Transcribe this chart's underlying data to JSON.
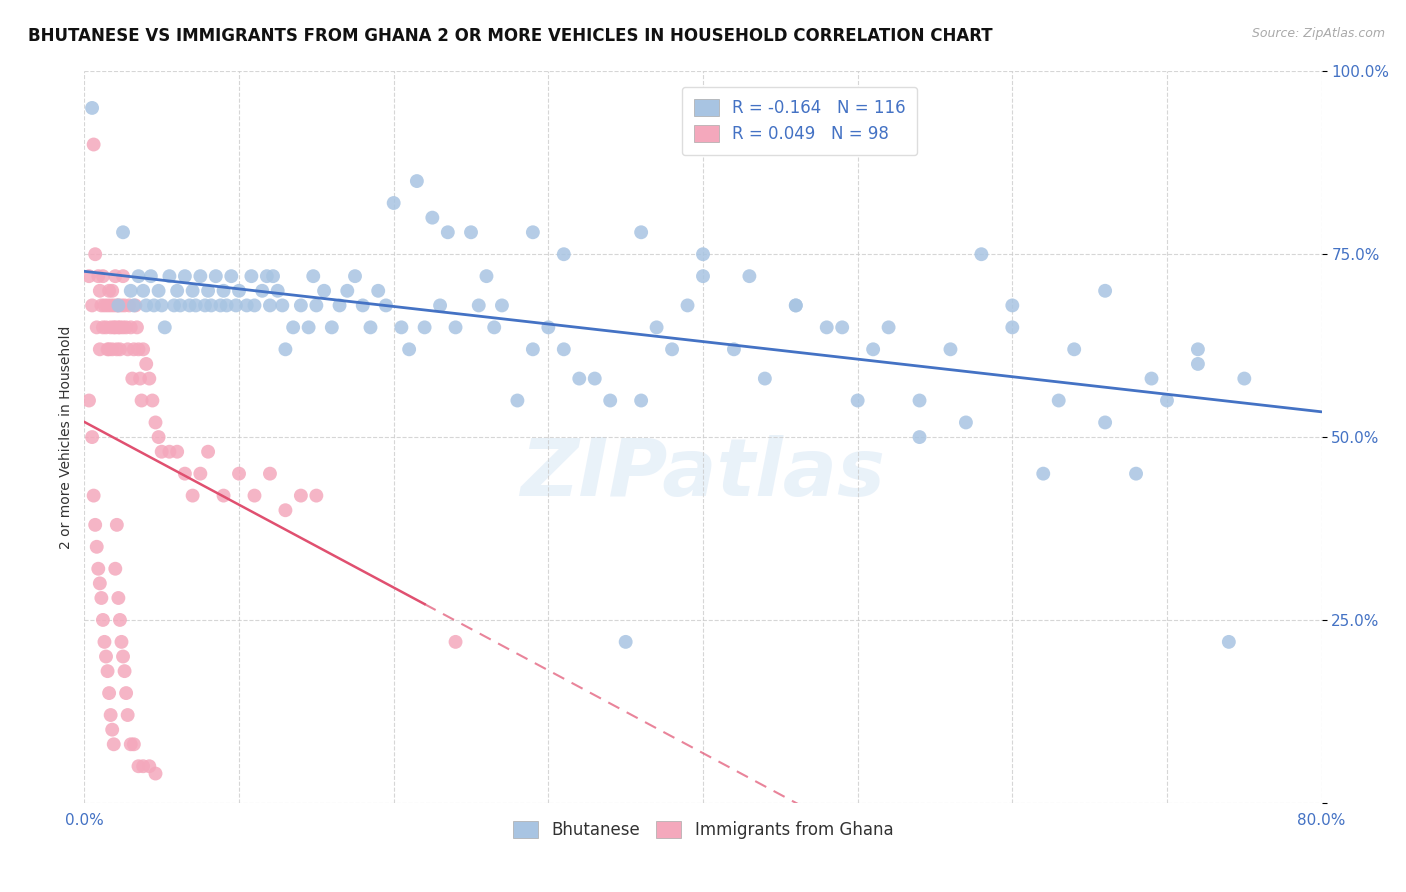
{
  "title": "BHUTANESE VS IMMIGRANTS FROM GHANA 2 OR MORE VEHICLES IN HOUSEHOLD CORRELATION CHART",
  "source": "Source: ZipAtlas.com",
  "ylabel": "2 or more Vehicles in Household",
  "xlim": [
    0.0,
    0.8
  ],
  "ylim": [
    0.0,
    1.0
  ],
  "xtick_positions": [
    0.0,
    0.1,
    0.2,
    0.3,
    0.4,
    0.5,
    0.6,
    0.7,
    0.8
  ],
  "xticklabels": [
    "0.0%",
    "",
    "",
    "",
    "",
    "",
    "",
    "",
    "80.0%"
  ],
  "ytick_positions": [
    0.0,
    0.25,
    0.5,
    0.75,
    1.0
  ],
  "yticklabels": [
    "",
    "25.0%",
    "50.0%",
    "75.0%",
    "100.0%"
  ],
  "blue_R": -0.164,
  "blue_N": 116,
  "pink_R": 0.049,
  "pink_N": 98,
  "blue_scatter_color": "#a8c4e2",
  "pink_scatter_color": "#f4a8bc",
  "blue_line_color": "#4472c4",
  "pink_line_color": "#e05070",
  "legend_label_blue": "Bhutanese",
  "legend_label_pink": "Immigrants from Ghana",
  "watermark": "ZIPatlas",
  "blue_x": [
    0.005,
    0.022,
    0.025,
    0.03,
    0.032,
    0.035,
    0.038,
    0.04,
    0.043,
    0.045,
    0.048,
    0.05,
    0.052,
    0.055,
    0.058,
    0.06,
    0.062,
    0.065,
    0.068,
    0.07,
    0.072,
    0.075,
    0.078,
    0.08,
    0.082,
    0.085,
    0.088,
    0.09,
    0.092,
    0.095,
    0.098,
    0.1,
    0.105,
    0.108,
    0.11,
    0.115,
    0.118,
    0.12,
    0.122,
    0.125,
    0.128,
    0.13,
    0.135,
    0.14,
    0.145,
    0.148,
    0.15,
    0.155,
    0.16,
    0.165,
    0.17,
    0.175,
    0.18,
    0.185,
    0.19,
    0.195,
    0.2,
    0.205,
    0.21,
    0.215,
    0.22,
    0.225,
    0.23,
    0.235,
    0.24,
    0.25,
    0.255,
    0.26,
    0.265,
    0.27,
    0.28,
    0.29,
    0.3,
    0.31,
    0.32,
    0.33,
    0.34,
    0.35,
    0.36,
    0.37,
    0.38,
    0.39,
    0.4,
    0.42,
    0.44,
    0.46,
    0.48,
    0.5,
    0.52,
    0.54,
    0.56,
    0.58,
    0.6,
    0.62,
    0.64,
    0.66,
    0.68,
    0.7,
    0.72,
    0.74,
    0.29,
    0.31,
    0.36,
    0.4,
    0.43,
    0.46,
    0.49,
    0.51,
    0.54,
    0.57,
    0.6,
    0.63,
    0.66,
    0.69,
    0.72,
    0.75
  ],
  "blue_y": [
    0.95,
    0.68,
    0.78,
    0.7,
    0.68,
    0.72,
    0.7,
    0.68,
    0.72,
    0.68,
    0.7,
    0.68,
    0.65,
    0.72,
    0.68,
    0.7,
    0.68,
    0.72,
    0.68,
    0.7,
    0.68,
    0.72,
    0.68,
    0.7,
    0.68,
    0.72,
    0.68,
    0.7,
    0.68,
    0.72,
    0.68,
    0.7,
    0.68,
    0.72,
    0.68,
    0.7,
    0.72,
    0.68,
    0.72,
    0.7,
    0.68,
    0.62,
    0.65,
    0.68,
    0.65,
    0.72,
    0.68,
    0.7,
    0.65,
    0.68,
    0.7,
    0.72,
    0.68,
    0.65,
    0.7,
    0.68,
    0.82,
    0.65,
    0.62,
    0.85,
    0.65,
    0.8,
    0.68,
    0.78,
    0.65,
    0.78,
    0.68,
    0.72,
    0.65,
    0.68,
    0.55,
    0.62,
    0.65,
    0.62,
    0.58,
    0.58,
    0.55,
    0.22,
    0.55,
    0.65,
    0.62,
    0.68,
    0.72,
    0.62,
    0.58,
    0.68,
    0.65,
    0.55,
    0.65,
    0.5,
    0.62,
    0.75,
    0.68,
    0.45,
    0.62,
    0.7,
    0.45,
    0.55,
    0.62,
    0.22,
    0.78,
    0.75,
    0.78,
    0.75,
    0.72,
    0.68,
    0.65,
    0.62,
    0.55,
    0.52,
    0.65,
    0.55,
    0.52,
    0.58,
    0.6,
    0.58
  ],
  "pink_x": [
    0.003,
    0.005,
    0.006,
    0.007,
    0.008,
    0.009,
    0.01,
    0.01,
    0.011,
    0.012,
    0.012,
    0.013,
    0.014,
    0.015,
    0.015,
    0.016,
    0.016,
    0.017,
    0.017,
    0.018,
    0.018,
    0.019,
    0.019,
    0.02,
    0.02,
    0.021,
    0.021,
    0.022,
    0.022,
    0.023,
    0.023,
    0.024,
    0.025,
    0.025,
    0.026,
    0.027,
    0.028,
    0.029,
    0.03,
    0.031,
    0.032,
    0.033,
    0.034,
    0.035,
    0.036,
    0.037,
    0.038,
    0.04,
    0.042,
    0.044,
    0.046,
    0.048,
    0.05,
    0.055,
    0.06,
    0.065,
    0.07,
    0.075,
    0.08,
    0.09,
    0.1,
    0.11,
    0.12,
    0.13,
    0.14,
    0.15,
    0.003,
    0.005,
    0.006,
    0.007,
    0.008,
    0.009,
    0.01,
    0.011,
    0.012,
    0.013,
    0.014,
    0.015,
    0.016,
    0.017,
    0.018,
    0.019,
    0.02,
    0.021,
    0.022,
    0.023,
    0.024,
    0.025,
    0.026,
    0.027,
    0.028,
    0.03,
    0.032,
    0.035,
    0.038,
    0.042,
    0.046,
    0.24
  ],
  "pink_y": [
    0.72,
    0.68,
    0.9,
    0.75,
    0.65,
    0.72,
    0.7,
    0.62,
    0.68,
    0.65,
    0.72,
    0.68,
    0.65,
    0.62,
    0.68,
    0.7,
    0.62,
    0.65,
    0.68,
    0.7,
    0.62,
    0.65,
    0.68,
    0.65,
    0.72,
    0.68,
    0.62,
    0.65,
    0.68,
    0.65,
    0.62,
    0.68,
    0.65,
    0.72,
    0.68,
    0.65,
    0.62,
    0.68,
    0.65,
    0.58,
    0.62,
    0.68,
    0.65,
    0.62,
    0.58,
    0.55,
    0.62,
    0.6,
    0.58,
    0.55,
    0.52,
    0.5,
    0.48,
    0.48,
    0.48,
    0.45,
    0.42,
    0.45,
    0.48,
    0.42,
    0.45,
    0.42,
    0.45,
    0.4,
    0.42,
    0.42,
    0.55,
    0.5,
    0.42,
    0.38,
    0.35,
    0.32,
    0.3,
    0.28,
    0.25,
    0.22,
    0.2,
    0.18,
    0.15,
    0.12,
    0.1,
    0.08,
    0.32,
    0.38,
    0.28,
    0.25,
    0.22,
    0.2,
    0.18,
    0.15,
    0.12,
    0.08,
    0.08,
    0.05,
    0.05,
    0.05,
    0.04,
    0.22
  ]
}
